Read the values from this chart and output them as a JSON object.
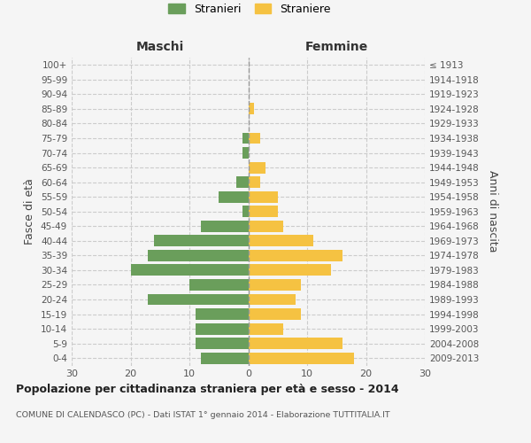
{
  "age_groups": [
    "0-4",
    "5-9",
    "10-14",
    "15-19",
    "20-24",
    "25-29",
    "30-34",
    "35-39",
    "40-44",
    "45-49",
    "50-54",
    "55-59",
    "60-64",
    "65-69",
    "70-74",
    "75-79",
    "80-84",
    "85-89",
    "90-94",
    "95-99",
    "100+"
  ],
  "birth_years": [
    "2009-2013",
    "2004-2008",
    "1999-2003",
    "1994-1998",
    "1989-1993",
    "1984-1988",
    "1979-1983",
    "1974-1978",
    "1969-1973",
    "1964-1968",
    "1959-1963",
    "1954-1958",
    "1949-1953",
    "1944-1948",
    "1939-1943",
    "1934-1938",
    "1929-1933",
    "1924-1928",
    "1919-1923",
    "1914-1918",
    "≤ 1913"
  ],
  "maschi": [
    8,
    9,
    9,
    9,
    17,
    10,
    20,
    17,
    16,
    8,
    1,
    5,
    2,
    0,
    1,
    1,
    0,
    0,
    0,
    0,
    0
  ],
  "femmine": [
    18,
    16,
    6,
    9,
    8,
    9,
    14,
    16,
    11,
    6,
    5,
    5,
    2,
    3,
    0,
    2,
    0,
    1,
    0,
    0,
    0
  ],
  "maschi_color": "#6a9e5b",
  "femmine_color": "#f5c242",
  "background_color": "#f5f5f5",
  "grid_color": "#cccccc",
  "title": "Popolazione per cittadinanza straniera per età e sesso - 2014",
  "subtitle": "COMUNE DI CALENDASCO (PC) - Dati ISTAT 1° gennaio 2014 - Elaborazione TUTTITALIA.IT",
  "ylabel_left": "Fasce di età",
  "ylabel_right": "Anni di nascita",
  "xlabel_maschi": "Maschi",
  "xlabel_femmine": "Femmine",
  "legend_stranieri": "Stranieri",
  "legend_straniere": "Straniere",
  "xlim": 30
}
